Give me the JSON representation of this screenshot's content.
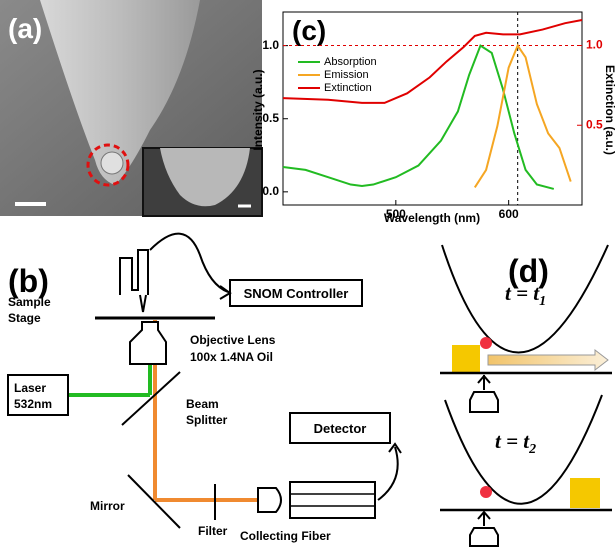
{
  "panel_a": {
    "label": "(a)"
  },
  "chart_data": {
    "type": "line",
    "panel_label": "(c)",
    "x_label": "Wavelength (nm)",
    "y_label": "Intensity (a.u.)",
    "y2_label": "Extinction (a.u.)",
    "xlim": [
      400,
      665
    ],
    "xticks": [
      500,
      600
    ],
    "ylim": [
      -0.09,
      1.23
    ],
    "yticks": [
      {
        "value": 0,
        "label": "0.0"
      },
      0.5,
      {
        "value": 1,
        "label": "1.0"
      }
    ],
    "y2lim": [
      0,
      1.21
    ],
    "y2ticks": [
      0.5,
      {
        "value": 1,
        "label": "1.0"
      }
    ],
    "y2_color": "#e00000",
    "legend": "upper left",
    "series": [
      {
        "name": "Absorption",
        "color": "#22bb22",
        "x": [
          400,
          420,
          440,
          460,
          470,
          480,
          500,
          520,
          540,
          555,
          565,
          575,
          585,
          595,
          605,
          615,
          625,
          640
        ],
        "values": [
          0.17,
          0.15,
          0.1,
          0.05,
          0.04,
          0.05,
          0.1,
          0.18,
          0.35,
          0.55,
          0.8,
          1.0,
          0.95,
          0.7,
          0.4,
          0.15,
          0.05,
          0.02
        ]
      },
      {
        "name": "Emission",
        "color": "#f5a623",
        "x": [
          570,
          580,
          590,
          600,
          608,
          615,
          625,
          635,
          645,
          655
        ],
        "values": [
          0.03,
          0.15,
          0.45,
          0.85,
          1.0,
          0.92,
          0.6,
          0.4,
          0.3,
          0.07
        ]
      },
      {
        "name": "Extinction",
        "color": "#e00000",
        "axis": "y2",
        "x": [
          400,
          440,
          470,
          490,
          510,
          530,
          545,
          560,
          570,
          580,
          595,
          610,
          630,
          650,
          665
        ],
        "values": [
          0.67,
          0.66,
          0.64,
          0.64,
          0.7,
          0.8,
          0.9,
          0.99,
          1.06,
          1.08,
          1.07,
          1.07,
          1.1,
          1.14,
          1.16
        ]
      }
    ],
    "ref_lines": [
      {
        "axis": "y2",
        "value": 1.0,
        "color": "#e00000"
      },
      {
        "axis": "x",
        "value": 608,
        "color": "#000000"
      }
    ]
  },
  "panel_b": {
    "label": "(b)",
    "controller": "SNOM Controller",
    "stage": [
      "Sample",
      "Stage"
    ],
    "objective": [
      "Objective Lens",
      "100x 1.4NA Oil"
    ],
    "laser": [
      "Laser",
      "532nm"
    ],
    "splitter": [
      "Beam",
      "Splitter"
    ],
    "mirror": "Mirror",
    "filter": "Filter",
    "fiber": "Collecting Fiber",
    "detector": "Detector"
  },
  "panel_d": {
    "label": "(d)",
    "states": [
      {
        "main": "t = t",
        "sub": "1"
      },
      {
        "main": "t = t",
        "sub": "2"
      }
    ]
  }
}
